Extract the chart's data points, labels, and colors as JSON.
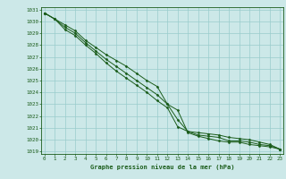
{
  "title": "Graphe pression niveau de la mer (hPa)",
  "bg_color": "#cce8e8",
  "grid_color": "#99cccc",
  "line_color": "#1a5c1a",
  "marker_color": "#1a5c1a",
  "xlim": [
    -0.3,
    23.3
  ],
  "ylim": [
    1018.8,
    1031.2
  ],
  "xticks": [
    0,
    1,
    2,
    3,
    4,
    5,
    6,
    7,
    8,
    9,
    10,
    11,
    12,
    13,
    14,
    15,
    16,
    17,
    18,
    19,
    20,
    21,
    22,
    23
  ],
  "yticks": [
    1019,
    1020,
    1021,
    1022,
    1023,
    1024,
    1025,
    1026,
    1027,
    1028,
    1029,
    1030,
    1031
  ],
  "series": [
    [
      1030.7,
      1030.2,
      1029.7,
      1029.2,
      1028.4,
      1027.8,
      1027.2,
      1026.7,
      1026.2,
      1025.6,
      1025.0,
      1024.5,
      1023.0,
      1022.5,
      1020.6,
      1020.3,
      1020.1,
      1019.9,
      1019.8,
      1019.8,
      1019.6,
      1019.5,
      1019.4,
      1019.2
    ],
    [
      1030.7,
      1030.2,
      1029.5,
      1029.0,
      1028.2,
      1027.5,
      1026.8,
      1026.2,
      1025.6,
      1025.0,
      1024.4,
      1023.8,
      1023.0,
      1021.7,
      1020.7,
      1020.4,
      1020.3,
      1020.2,
      1019.9,
      1019.9,
      1019.8,
      1019.6,
      1019.5,
      1019.2
    ],
    [
      1030.7,
      1030.2,
      1029.3,
      1028.8,
      1028.0,
      1027.3,
      1026.5,
      1025.8,
      1025.2,
      1024.6,
      1024.0,
      1023.3,
      1022.7,
      1021.1,
      1020.7,
      1020.6,
      1020.5,
      1020.4,
      1020.2,
      1020.1,
      1020.0,
      1019.8,
      1019.6,
      1019.2
    ]
  ]
}
